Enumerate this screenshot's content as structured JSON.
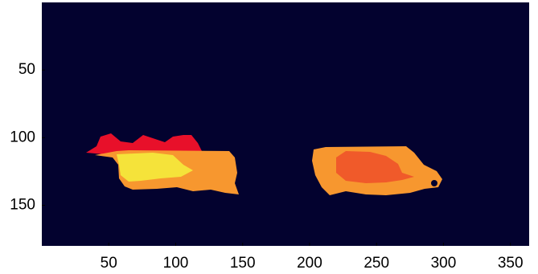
{
  "chart_data": {
    "type": "image",
    "background": "#03022f",
    "xlim": [
      0,
      364
    ],
    "xticks": [
      50,
      100,
      150,
      200,
      250,
      300,
      350
    ],
    "ylim": [
      180,
      0
    ],
    "yticks": [
      50,
      100,
      150
    ]
  }
}
